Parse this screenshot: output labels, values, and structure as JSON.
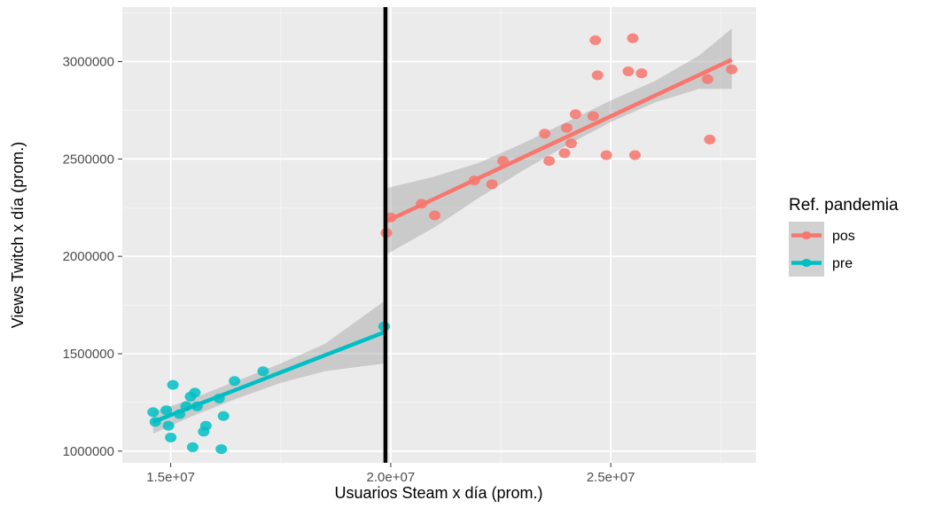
{
  "chart_data": {
    "type": "scatter",
    "xlabel": "Usuarios Steam x día (prom.)",
    "ylabel": "Views Twitch x día (prom.)",
    "xlim": [
      13900000,
      28300000
    ],
    "ylim": [
      940000,
      3280000
    ],
    "x_ticks": [
      15000000,
      20000000,
      25000000
    ],
    "x_tick_labels": [
      "1.5e+07",
      "2.0e+07",
      "2.5e+07"
    ],
    "y_ticks": [
      1000000,
      1500000,
      2000000,
      2500000,
      3000000
    ],
    "y_tick_labels": [
      "1000000",
      "1500000",
      "2000000",
      "2500000",
      "3000000"
    ],
    "grid": true,
    "vline_x": 19880000,
    "legend": {
      "title": "Ref. pandemia",
      "placement": "right"
    },
    "series": [
      {
        "name": "pos",
        "color": "#F8766D",
        "points": [
          [
            19900000,
            2120000
          ],
          [
            20000000,
            2200000
          ],
          [
            20700000,
            2270000
          ],
          [
            21000000,
            2210000
          ],
          [
            21900000,
            2390000
          ],
          [
            22300000,
            2370000
          ],
          [
            22550000,
            2490000
          ],
          [
            23500000,
            2630000
          ],
          [
            23600000,
            2490000
          ],
          [
            23950000,
            2530000
          ],
          [
            24000000,
            2660000
          ],
          [
            24100000,
            2580000
          ],
          [
            24200000,
            2730000
          ],
          [
            24600000,
            2720000
          ],
          [
            24650000,
            3110000
          ],
          [
            24700000,
            2930000
          ],
          [
            24900000,
            2520000
          ],
          [
            25400000,
            2950000
          ],
          [
            25500000,
            3120000
          ],
          [
            25550000,
            2520000
          ],
          [
            25700000,
            2940000
          ],
          [
            27200000,
            2910000
          ],
          [
            27250000,
            2600000
          ],
          [
            27750000,
            2960000
          ]
        ],
        "fit_line": [
          [
            19900000,
            2180000
          ],
          [
            27750000,
            3010000
          ]
        ],
        "ci_band": {
          "x": [
            19900000,
            21000000,
            22000000,
            23000000,
            24000000,
            25000000,
            26000000,
            27000000,
            27750000
          ],
          "upper": [
            2350000,
            2410000,
            2480000,
            2580000,
            2690000,
            2800000,
            2900000,
            3030000,
            3170000
          ],
          "lower": [
            2010000,
            2150000,
            2300000,
            2440000,
            2570000,
            2690000,
            2790000,
            2860000,
            2860000
          ]
        }
      },
      {
        "name": "pre",
        "color": "#00BFC4",
        "points": [
          [
            14600000,
            1200000
          ],
          [
            14650000,
            1150000
          ],
          [
            14900000,
            1210000
          ],
          [
            14950000,
            1130000
          ],
          [
            15000000,
            1070000
          ],
          [
            15050000,
            1340000
          ],
          [
            15200000,
            1190000
          ],
          [
            15350000,
            1230000
          ],
          [
            15450000,
            1280000
          ],
          [
            15500000,
            1020000
          ],
          [
            15550000,
            1300000
          ],
          [
            15600000,
            1230000
          ],
          [
            15750000,
            1100000
          ],
          [
            15800000,
            1130000
          ],
          [
            16100000,
            1270000
          ],
          [
            16150000,
            1010000
          ],
          [
            16200000,
            1180000
          ],
          [
            16450000,
            1360000
          ],
          [
            17100000,
            1410000
          ],
          [
            19850000,
            1640000
          ]
        ],
        "fit_line": [
          [
            14600000,
            1150000
          ],
          [
            19850000,
            1610000
          ]
        ],
        "ci_band": {
          "x": [
            14600000,
            15500000,
            16500000,
            17500000,
            18500000,
            19850000
          ],
          "upper": [
            1200000,
            1270000,
            1360000,
            1450000,
            1550000,
            1770000
          ],
          "lower": [
            1090000,
            1180000,
            1270000,
            1350000,
            1410000,
            1450000
          ]
        }
      }
    ]
  }
}
